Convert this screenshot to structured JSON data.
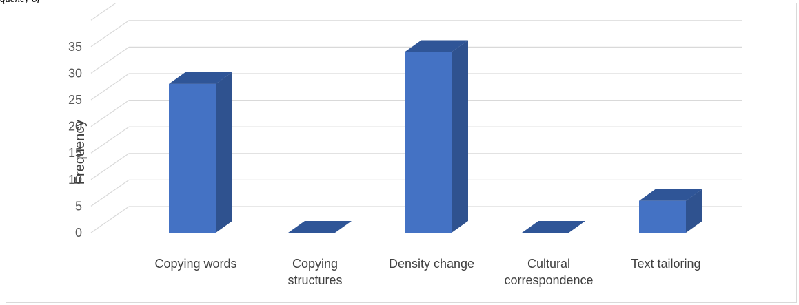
{
  "header_text": "quency of",
  "chart_data": {
    "type": "bar",
    "categories": [
      "Copying words",
      "Copying structures",
      "Density change",
      "Cultural correspondence",
      "Text tailoring"
    ],
    "category_label_lines": [
      [
        "Copying words"
      ],
      [
        "Copying",
        "structures"
      ],
      [
        "Density change"
      ],
      [
        "Cultural",
        "correspondence"
      ],
      [
        "Text tailoring"
      ]
    ],
    "series": [
      {
        "values": [
          28,
          0,
          34,
          0,
          6
        ]
      }
    ],
    "ylabel": "Frequency",
    "xlabel": "",
    "ylim": [
      0,
      35
    ],
    "yticks": [
      0,
      5,
      10,
      15,
      20,
      25,
      30,
      35
    ],
    "grid": true,
    "style": "3d-column",
    "colors": {
      "front": "#4472c4",
      "side": "#2f528f",
      "top": "#2f5597",
      "grid": "#d9d9d9"
    }
  }
}
